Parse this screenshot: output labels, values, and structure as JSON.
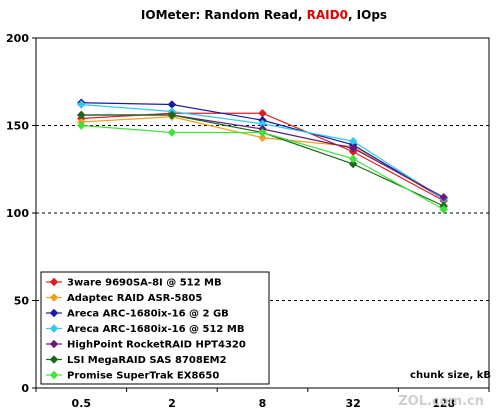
{
  "chart_data": {
    "type": "line",
    "title_parts": [
      {
        "text": "IOMeter: Random Read, ",
        "color": "#000000"
      },
      {
        "text": "RAID0",
        "color": "#e00000"
      },
      {
        "text": ", IOps",
        "color": "#000000"
      }
    ],
    "xlabel": "chunk size, kB",
    "ylabel": "",
    "categories": [
      "0.5",
      "2",
      "8",
      "32",
      "128"
    ],
    "y_ticks": [
      "0",
      "50",
      "100",
      "150",
      "200"
    ],
    "ylim": [
      0,
      200
    ],
    "grid": "horizontal-dashed",
    "legend_position": "bottom-left",
    "series": [
      {
        "name": "3ware 9690SA-8I @ 512 MB",
        "color": "#e01e1e",
        "values": [
          154,
          157,
          157,
          135,
          107
        ]
      },
      {
        "name": "Adaptec RAID ASR-5805",
        "color": "#f0a020",
        "values": [
          152,
          155,
          143,
          138,
          108
        ]
      },
      {
        "name": "Areca ARC-1680ix-16 @ 2 GB",
        "color": "#1a1aa8",
        "values": [
          163,
          162,
          153,
          139,
          108
        ]
      },
      {
        "name": "Areca ARC-1680ix-16 @ 512 MB",
        "color": "#30c8f0",
        "values": [
          162,
          158,
          151,
          141,
          108
        ]
      },
      {
        "name": "HighPoint RocketRAID HPT4320",
        "color": "#6a1a7a",
        "values": [
          156,
          156,
          148,
          137,
          109
        ]
      },
      {
        "name": "LSI MegaRAID SAS 8708EM2",
        "color": "#1a6a1a",
        "values": [
          156,
          156,
          146,
          128,
          104
        ]
      },
      {
        "name": "Promise SuperTrak EX8650",
        "color": "#40e040",
        "values": [
          150,
          146,
          146,
          131,
          102
        ]
      }
    ]
  },
  "watermark": "ZOL.com.cn",
  "colors": {
    "plot_border": "#000000",
    "grid": "#000000",
    "legend_border": "#000000"
  }
}
